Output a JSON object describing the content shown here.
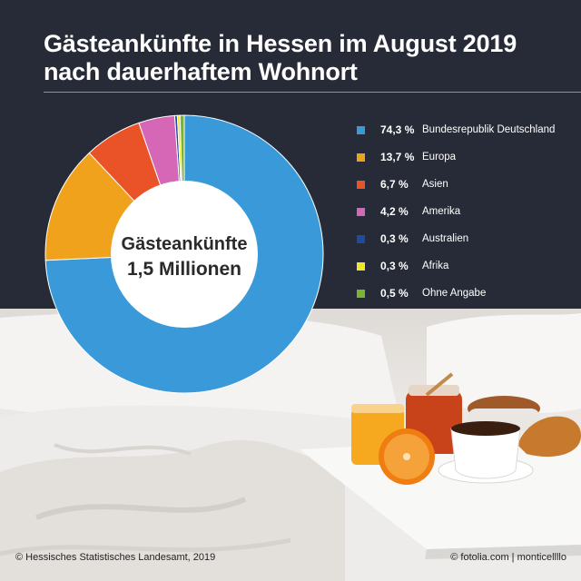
{
  "header": {
    "title_line1": "Gästeankünfte in Hessen im August 2019",
    "title_line2": "nach dauerhaftem Wohnort"
  },
  "chart_data": {
    "type": "pie",
    "donut": true,
    "title": "Gästeankünfte in Hessen im August 2019 nach dauerhaftem Wohnort",
    "center_label": {
      "line1": "Gästeankünfte",
      "line2": "1,5 Millionen"
    },
    "legend_position": "right",
    "slices": [
      {
        "label": "Bundesrepublik Deutschland",
        "value": 74.3,
        "value_label": "74,3 %",
        "color": "#3a9ad9"
      },
      {
        "label": "Europa",
        "value": 13.7,
        "value_label": "13,7 %",
        "color": "#f0a21c"
      },
      {
        "label": "Asien",
        "value": 6.7,
        "value_label": "6,7 %",
        "color": "#ea5228"
      },
      {
        "label": "Amerika",
        "value": 4.2,
        "value_label": "4,2 %",
        "color": "#d667b6"
      },
      {
        "label": "Australien",
        "value": 0.3,
        "value_label": "0,3 %",
        "color": "#1f4aa0"
      },
      {
        "label": "Afrika",
        "value": 0.3,
        "value_label": "0,3 %",
        "color": "#eee62a"
      },
      {
        "label": "Ohne Angabe",
        "value": 0.5,
        "value_label": "0,5 %",
        "color": "#79b532"
      }
    ]
  },
  "footer": {
    "source": "© Hessisches Statistisches Landesamt, 2019",
    "photo_credit": "© fotolia.com | monticellllo"
  }
}
